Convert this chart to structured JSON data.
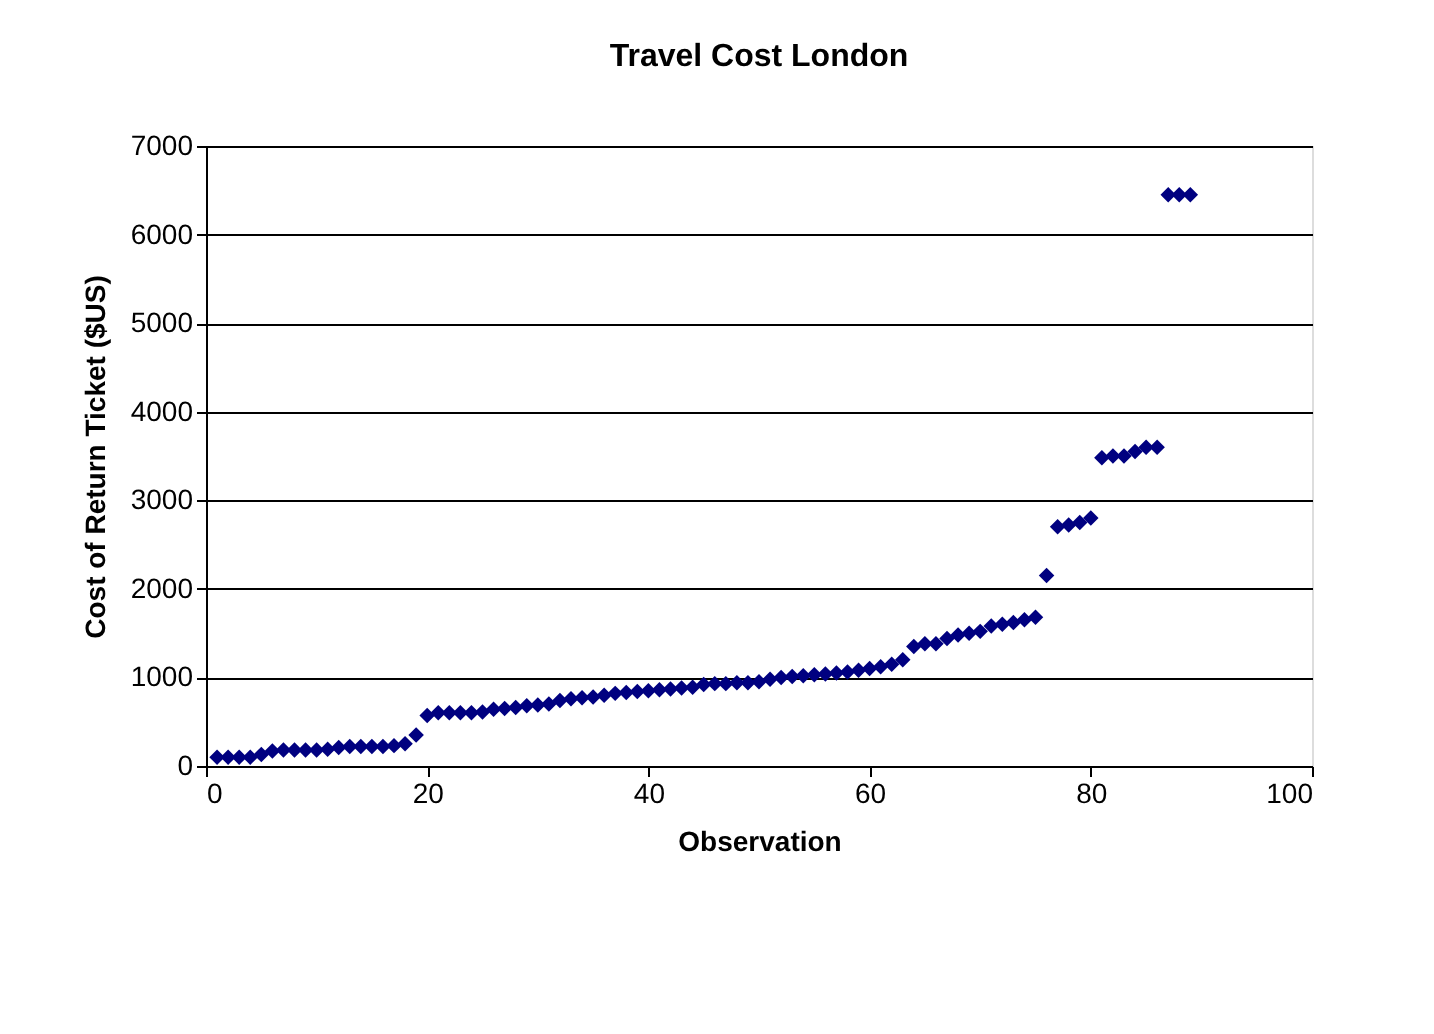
{
  "chart_data": {
    "type": "scatter",
    "title": "Travel Cost London",
    "xlabel": "Observation",
    "ylabel": "Cost of Return Ticket ($US)",
    "marker": "diamond",
    "grid": "y",
    "xlim": [
      0,
      100
    ],
    "xticks": [
      0,
      20,
      40,
      60,
      80,
      100
    ],
    "ylim": [
      0,
      7000
    ],
    "yticks": [
      0,
      1000,
      2000,
      3000,
      4000,
      5000,
      6000,
      7000
    ],
    "x": [
      1,
      2,
      3,
      4,
      5,
      6,
      7,
      8,
      9,
      10,
      11,
      12,
      13,
      14,
      15,
      16,
      17,
      18,
      19,
      20,
      21,
      22,
      23,
      24,
      25,
      26,
      27,
      28,
      29,
      30,
      31,
      32,
      33,
      34,
      35,
      36,
      37,
      38,
      39,
      40,
      41,
      42,
      43,
      44,
      45,
      46,
      47,
      48,
      49,
      50,
      51,
      52,
      53,
      54,
      55,
      56,
      57,
      58,
      59,
      60,
      61,
      62,
      63,
      64,
      65,
      66,
      67,
      68,
      69,
      70,
      71,
      72,
      73,
      74,
      75,
      76,
      77,
      78,
      79,
      80,
      81,
      82,
      83,
      84,
      85,
      86,
      87,
      88,
      89
    ],
    "series": [
      {
        "color": "#000080",
        "values": [
          100,
          100,
          100,
          100,
          130,
          170,
          180,
          180,
          180,
          180,
          190,
          210,
          220,
          220,
          220,
          220,
          230,
          250,
          350,
          570,
          600,
          600,
          600,
          600,
          610,
          640,
          650,
          660,
          680,
          690,
          700,
          740,
          760,
          770,
          780,
          800,
          820,
          830,
          840,
          850,
          860,
          870,
          880,
          890,
          920,
          930,
          930,
          940,
          940,
          950,
          980,
          1000,
          1010,
          1020,
          1030,
          1040,
          1050,
          1060,
          1080,
          1100,
          1120,
          1150,
          1200,
          1350,
          1380,
          1380,
          1440,
          1480,
          1500,
          1520,
          1580,
          1600,
          1620,
          1650,
          1680,
          2150,
          2700,
          2720,
          2750,
          2800,
          3480,
          3500,
          3500,
          3550,
          3600,
          3600,
          6450,
          6450,
          6450
        ]
      }
    ]
  }
}
